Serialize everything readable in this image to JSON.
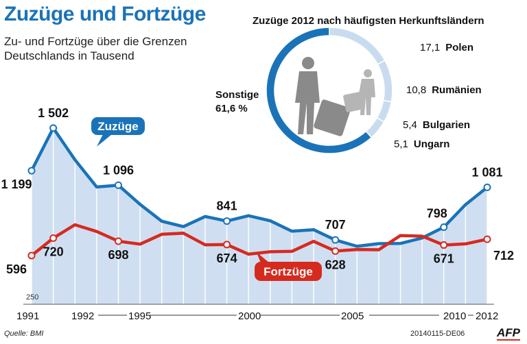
{
  "header": {
    "title": "Zuzüge und Fortzüge",
    "subtitle": "Zu- und Fortzüge über die Grenzen Deutschlands in Tausend"
  },
  "footer": {
    "source": "Quelle: BMI",
    "code": "20140115-DE06",
    "brand": "AFP"
  },
  "colors": {
    "zuzuege": "#1a73b8",
    "fortzuege": "#d62a1f",
    "area": "#cfdff1",
    "donut_main": "#1a73b8",
    "donut_light": "#c9dcef"
  },
  "chart_data": [
    {
      "type": "line",
      "x": [
        1991,
        1992,
        1993,
        1994,
        1995,
        1996,
        1997,
        1998,
        1999,
        2000,
        2001,
        2002,
        2003,
        2004,
        2005,
        2006,
        2007,
        2008,
        2009,
        2010,
        2011,
        2012
      ],
      "x_tick_labels": [
        "1991",
        "1992",
        "1995",
        "2000",
        "2005",
        "2010",
        "2012"
      ],
      "y_baseline_label": "250",
      "ylim": [
        250,
        1560
      ],
      "series": [
        {
          "name": "Zuzüge",
          "values": [
            1199,
            1502,
            1277,
            1083,
            1096,
            960,
            840,
            802,
            874,
            841,
            879,
            843,
            769,
            780,
            707,
            662,
            681,
            682,
            721,
            798,
            958,
            1081
          ],
          "labels": {
            "1991": "1 199",
            "1992": "1 502",
            "1995": "1 096",
            "2000": "841",
            "2005": "707",
            "2010": "798",
            "2012": "1 081"
          }
        },
        {
          "name": "Fortzüge",
          "values": [
            596,
            720,
            815,
            767,
            698,
            677,
            747,
            755,
            672,
            674,
            606,
            623,
            626,
            697,
            628,
            639,
            637,
            738,
            734,
            671,
            679,
            712
          ],
          "labels": {
            "1991": "596",
            "1992": "720",
            "1995": "698",
            "2000": "674",
            "2005": "628",
            "2010": "671",
            "2012": "712"
          }
        }
      ]
    },
    {
      "type": "pie",
      "title": "Zuzüge 2012 nach häufigsten Herkunftsländern",
      "slices": [
        {
          "name": "Polen",
          "value": 17.1,
          "label": "17,1"
        },
        {
          "name": "Rumänien",
          "value": 10.8,
          "label": "10,8"
        },
        {
          "name": "Bulgarien",
          "value": 5.4,
          "label": "5,4"
        },
        {
          "name": "Ungarn",
          "value": 5.1,
          "label": "5,1"
        },
        {
          "name": "Sonstige",
          "value": 61.6,
          "label": "61,6 %"
        }
      ]
    }
  ]
}
